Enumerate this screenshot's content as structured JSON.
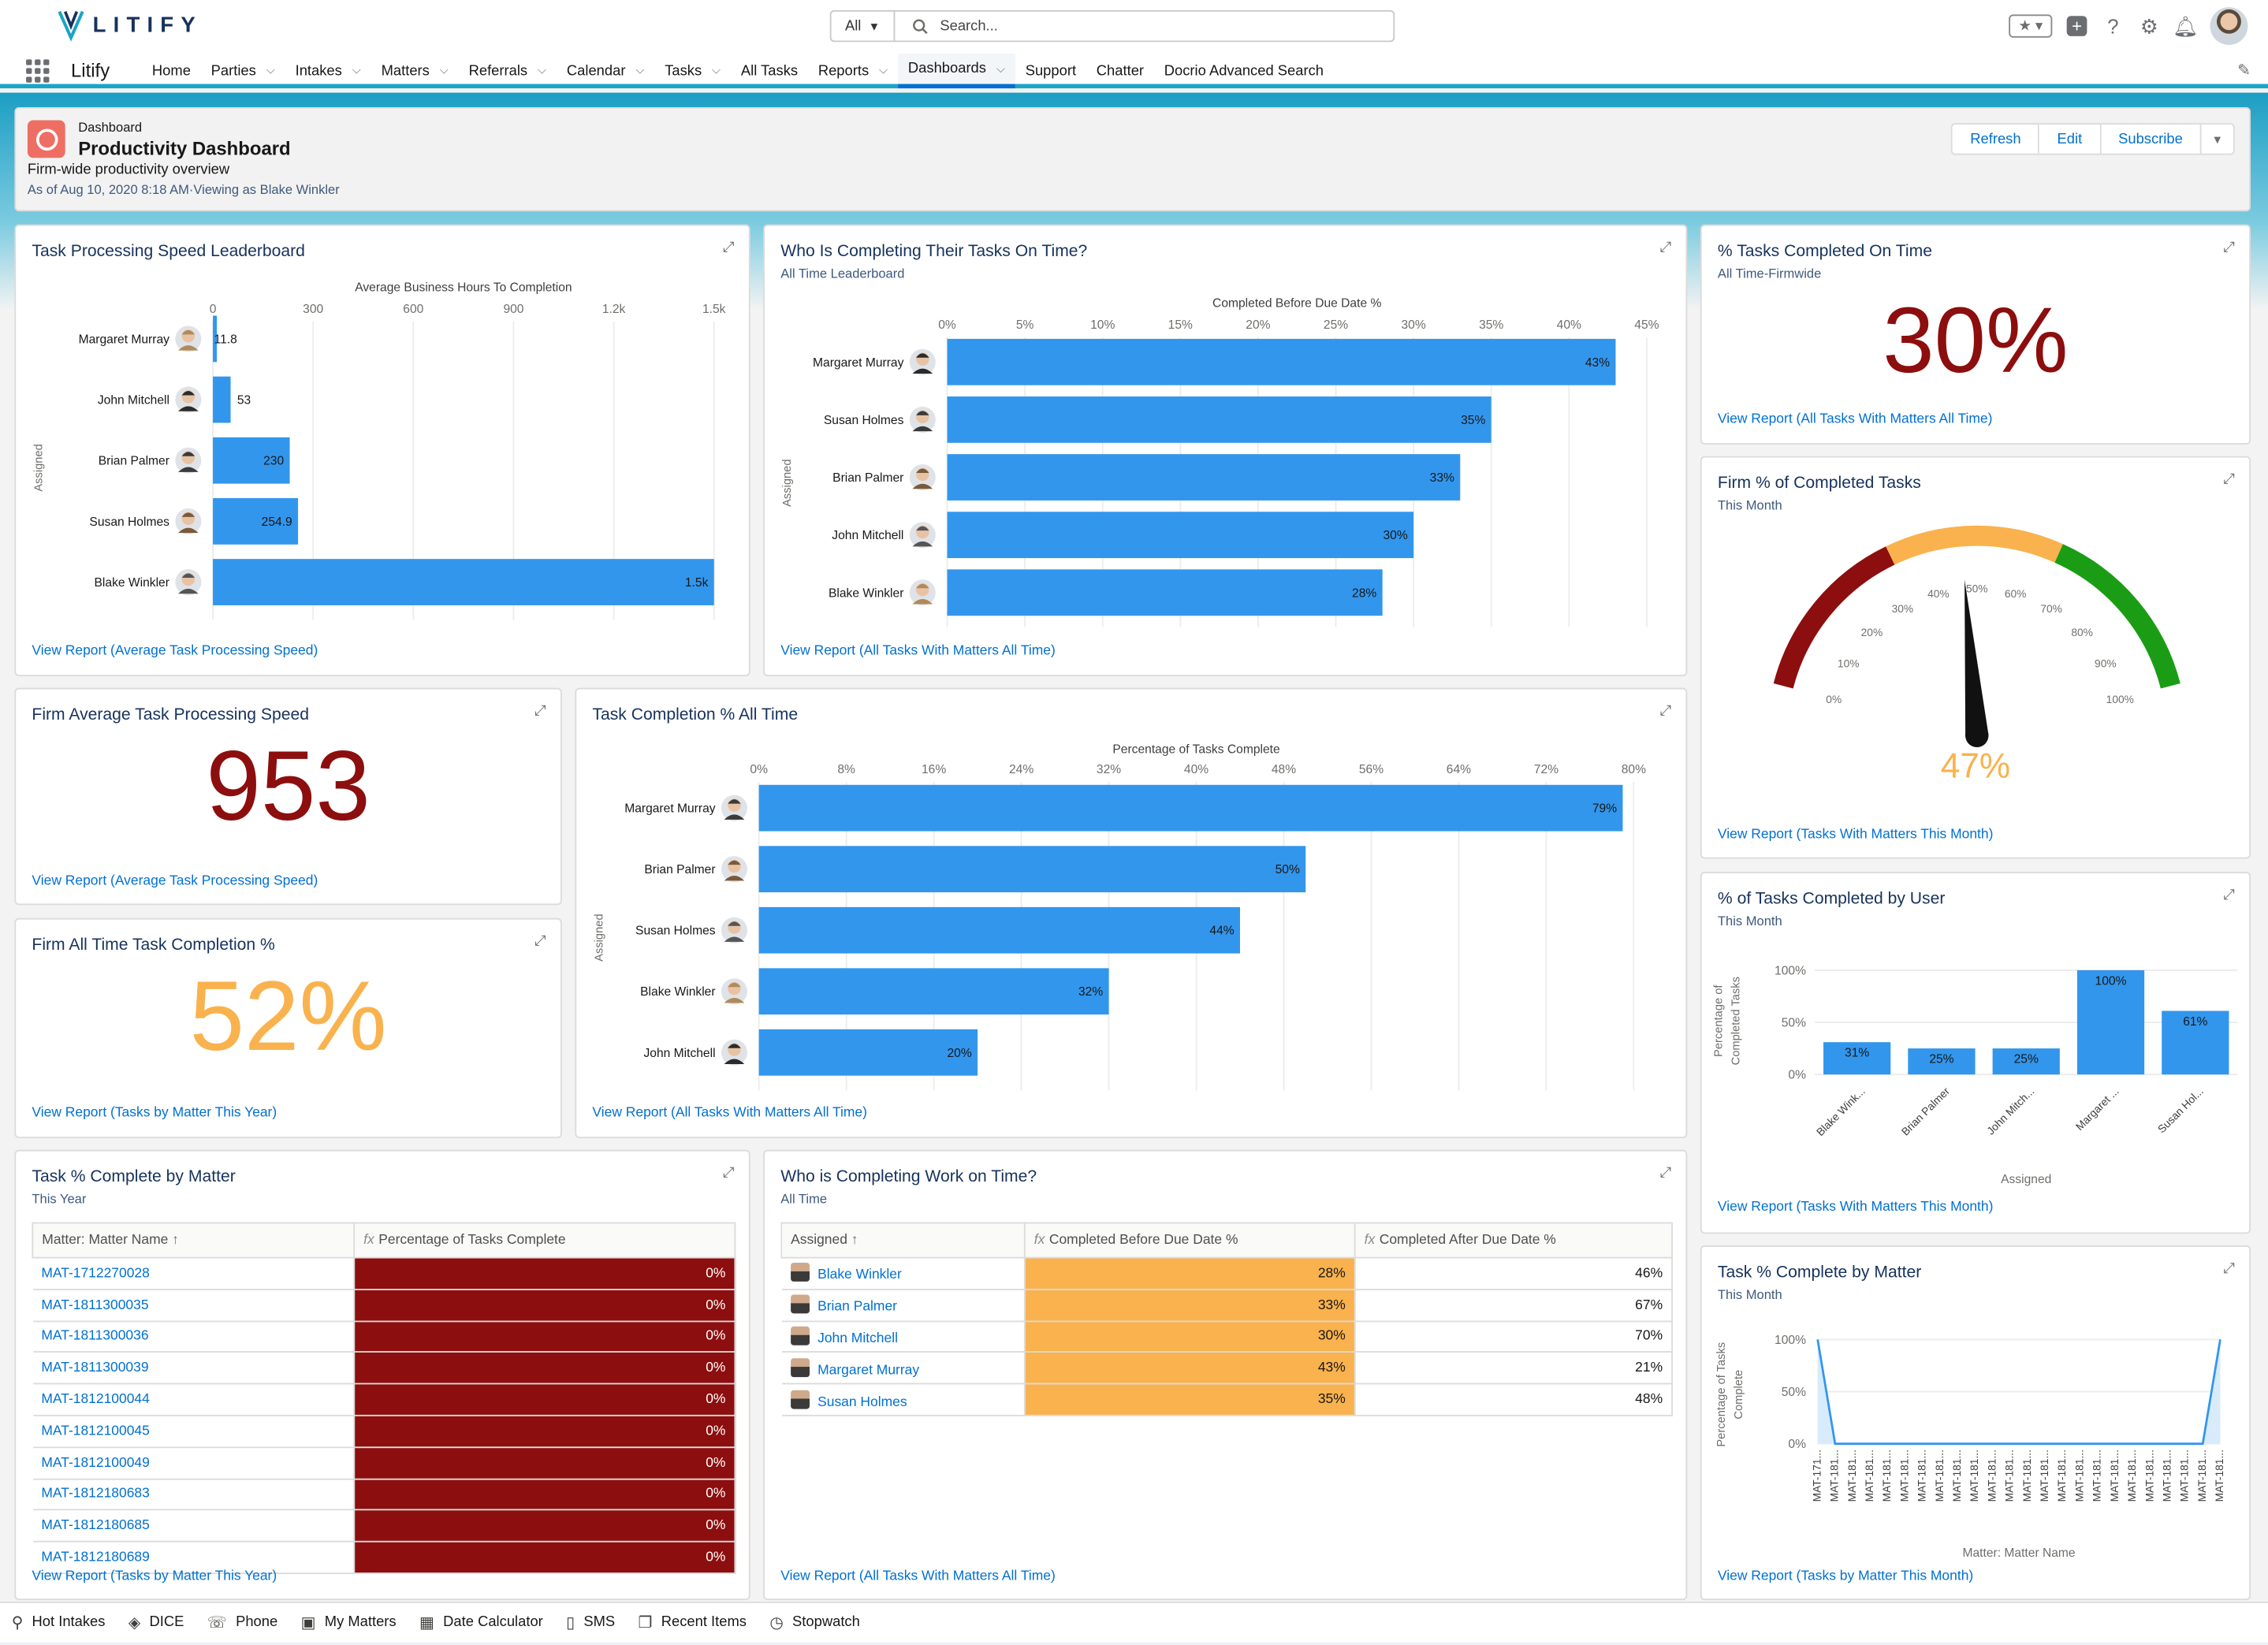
{
  "brand": {
    "name": "LITIFY",
    "app_name": "Litify"
  },
  "search": {
    "scope": "All",
    "placeholder": "Search..."
  },
  "nav": {
    "items": [
      "Home",
      "Parties",
      "Intakes",
      "Matters",
      "Referrals",
      "Calendar",
      "Tasks",
      "All Tasks",
      "Reports",
      "Dashboards",
      "Support",
      "Chatter",
      "Docrio Advanced Search"
    ],
    "has_menu": [
      false,
      true,
      true,
      true,
      true,
      true,
      true,
      false,
      true,
      true,
      false,
      false,
      false
    ],
    "active": "Dashboards"
  },
  "header": {
    "kicker": "Dashboard",
    "title": "Productivity Dashboard",
    "subtitle": "Firm-wide productivity overview",
    "as_of": "As of Aug 10, 2020 8:18 AM·Viewing as Blake Winkler",
    "buttons": [
      "Refresh",
      "Edit",
      "Subscribe"
    ]
  },
  "colors": {
    "bar": "#3296ed",
    "accent": "#0070d2",
    "dark_red": "#8c0e0e",
    "orange": "#f9b24d",
    "green": "#1a9d14"
  },
  "cards": {
    "speed": {
      "title": "Task Processing Speed Leaderboard",
      "link": "View Report (Average Task Processing Speed)",
      "chart_data": {
        "type": "bar",
        "orientation": "horizontal",
        "xlabel": "Average Business Hours To Completion",
        "ylabel": "Assigned",
        "xlim": [
          0,
          1500
        ],
        "ticks": [
          "0",
          "300",
          "600",
          "900",
          "1.2k",
          "1.5k"
        ],
        "categories": [
          "Margaret Murray",
          "John Mitchell",
          "Brian Palmer",
          "Susan Holmes",
          "Blake Winkler"
        ],
        "values": [
          11.8,
          53,
          230,
          254.9,
          1500
        ],
        "labels": [
          "11.8",
          "53",
          "230",
          "254.9",
          "1.5k"
        ]
      }
    },
    "ontime": {
      "title": "Who Is Completing Their Tasks On Time?",
      "subtitle": "All Time Leaderboard",
      "link": "View Report (All Tasks With Matters All Time)",
      "chart_data": {
        "type": "bar",
        "orientation": "horizontal",
        "xlabel": "Completed Before Due Date %",
        "ylabel": "Assigned",
        "xlim": [
          0,
          45
        ],
        "ticks": [
          "0%",
          "5%",
          "10%",
          "15%",
          "20%",
          "25%",
          "30%",
          "35%",
          "40%",
          "45%"
        ],
        "categories": [
          "Margaret Murray",
          "Susan Holmes",
          "Brian Palmer",
          "John Mitchell",
          "Blake Winkler"
        ],
        "values": [
          43,
          35,
          33,
          30,
          28
        ],
        "labels": [
          "43%",
          "35%",
          "33%",
          "30%",
          "28%"
        ]
      }
    },
    "pct_ontime": {
      "title": "% Tasks Completed On Time",
      "subtitle": "All Time-Firmwide",
      "value": "30%",
      "link": "View Report (All Tasks With Matters All Time)"
    },
    "firm_pct": {
      "title": "Firm % of Completed Tasks",
      "subtitle": "This Month",
      "value": "47%",
      "gauge_value": 47,
      "ticks": [
        "0%",
        "10%",
        "20%",
        "30%",
        "40%",
        "50%",
        "60%",
        "70%",
        "80%",
        "90%",
        "100%"
      ],
      "link": "View Report (Tasks With Matters This Month)"
    },
    "avg_speed": {
      "title": "Firm Average Task Processing Speed",
      "value": "953",
      "link": "View Report (Average Task Processing Speed)"
    },
    "completion": {
      "title": "Task Completion % All Time",
      "link": "View Report (All Tasks With Matters All Time)",
      "chart_data": {
        "type": "bar",
        "orientation": "horizontal",
        "xlabel": "Percentage of Tasks Complete",
        "ylabel": "Assigned",
        "xlim": [
          0,
          80
        ],
        "ticks": [
          "0%",
          "8%",
          "16%",
          "24%",
          "32%",
          "40%",
          "48%",
          "56%",
          "64%",
          "72%",
          "80%"
        ],
        "categories": [
          "Margaret Murray",
          "Brian Palmer",
          "Susan Holmes",
          "Blake Winkler",
          "John Mitchell"
        ],
        "values": [
          79,
          50,
          44,
          32,
          20
        ],
        "labels": [
          "79%",
          "50%",
          "44%",
          "32%",
          "20%"
        ]
      }
    },
    "alltime_pct": {
      "title": "Firm All Time Task Completion %",
      "value": "52%",
      "link": "View Report (Tasks by Matter This Year)"
    },
    "by_user": {
      "title": "% of Tasks Completed by User",
      "subtitle": "This Month",
      "link": "View Report (Tasks With Matters This Month)",
      "chart_data": {
        "type": "bar",
        "orientation": "vertical",
        "xlabel": "Assigned",
        "ylabel": "Percentage of Completed Tasks",
        "ylim": [
          0,
          100
        ],
        "ticks": [
          "0%",
          "50%",
          "100%"
        ],
        "categories": [
          "Blake Wink...",
          "Brian Palmer",
          "John Mitch...",
          "Margaret ...",
          "Susan Hol..."
        ],
        "values": [
          31,
          25,
          25,
          100,
          61
        ],
        "labels": [
          "31%",
          "25%",
          "25%",
          "100%",
          "61%"
        ]
      }
    },
    "matter_table": {
      "title": "Task % Complete by Matter",
      "subtitle": "This Year",
      "link": "View Report (Tasks by Matter This Year)",
      "columns": [
        "Matter: Matter Name",
        "Percentage of Tasks Complete"
      ],
      "rows": [
        [
          "MAT-1712270028",
          "0%"
        ],
        [
          "MAT-1811300035",
          "0%"
        ],
        [
          "MAT-1811300036",
          "0%"
        ],
        [
          "MAT-1811300039",
          "0%"
        ],
        [
          "MAT-1812100044",
          "0%"
        ],
        [
          "MAT-1812100045",
          "0%"
        ],
        [
          "MAT-1812100049",
          "0%"
        ],
        [
          "MAT-1812180683",
          "0%"
        ],
        [
          "MAT-1812180685",
          "0%"
        ],
        [
          "MAT-1812180689",
          "0%"
        ]
      ]
    },
    "work_table": {
      "title": "Who is Completing Work on Time?",
      "subtitle": "All Time",
      "link": "View Report (All Tasks With Matters All Time)",
      "columns": [
        "Assigned",
        "Completed Before Due Date %",
        "Completed After Due Date %"
      ],
      "rows": [
        [
          "Blake Winkler",
          "28%",
          "46%"
        ],
        [
          "Brian Palmer",
          "33%",
          "67%"
        ],
        [
          "John Mitchell",
          "30%",
          "70%"
        ],
        [
          "Margaret Murray",
          "43%",
          "21%"
        ],
        [
          "Susan Holmes",
          "35%",
          "48%"
        ]
      ]
    },
    "matter_line": {
      "title": "Task % Complete by Matter",
      "subtitle": "This Month",
      "link": "View Report (Tasks by Matter This Month)",
      "chart_data": {
        "type": "line",
        "xlabel": "Matter: Matter Name",
        "ylabel": "Percentage of Tasks Complete",
        "ylim": [
          0,
          100
        ],
        "ticks": [
          "0%",
          "50%",
          "100%"
        ],
        "categories": [
          "MAT-171...",
          "MAT-181...",
          "MAT-181...",
          "MAT-181...",
          "MAT-181...",
          "MAT-181...",
          "MAT-181...",
          "MAT-181...",
          "MAT-181...",
          "MAT-181...",
          "MAT-181...",
          "MAT-181...",
          "MAT-181...",
          "MAT-181...",
          "MAT-181...",
          "MAT-181...",
          "MAT-181...",
          "MAT-181...",
          "MAT-181...",
          "MAT-181...",
          "MAT-181...",
          "MAT-181...",
          "MAT-181...",
          "MAT-181..."
        ],
        "values": [
          100,
          0,
          0,
          0,
          0,
          0,
          0,
          0,
          0,
          0,
          0,
          0,
          0,
          0,
          0,
          0,
          0,
          0,
          0,
          0,
          0,
          0,
          0,
          100
        ]
      }
    }
  },
  "footer": {
    "items": [
      "Hot Intakes",
      "DICE",
      "Phone",
      "My Matters",
      "Date Calculator",
      "SMS",
      "Recent Items",
      "Stopwatch"
    ],
    "icons": [
      "pin-icon",
      "dice-icon",
      "phone-icon",
      "briefcase-icon",
      "calendar-icon",
      "mobile-icon",
      "recent-items-icon",
      "stopwatch-icon"
    ]
  }
}
